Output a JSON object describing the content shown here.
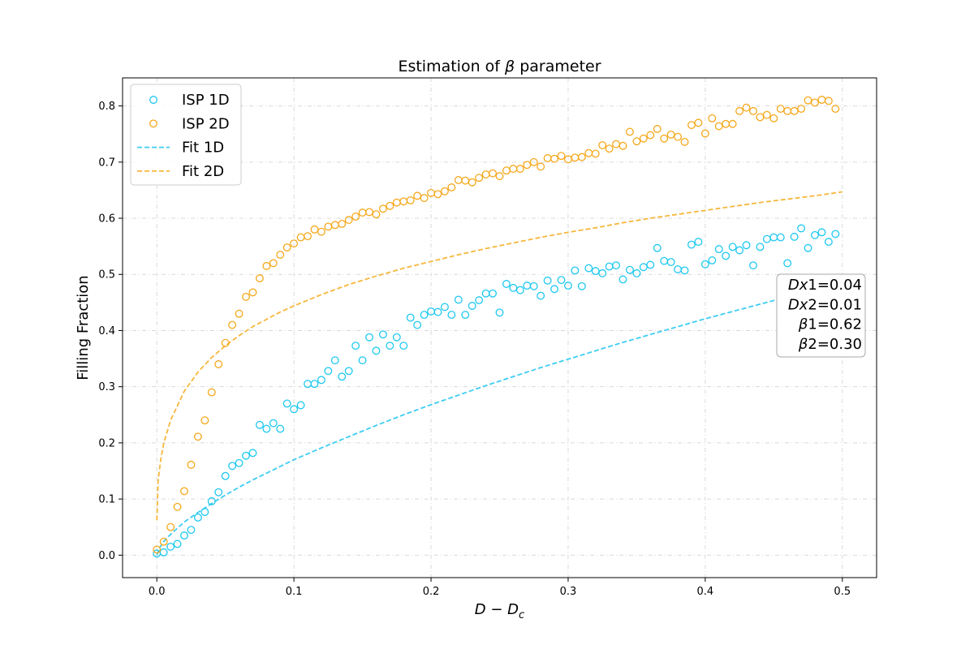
{
  "chart_data": {
    "type": "scatter",
    "title": "Estimation of β parameter",
    "xlabel": "D − D",
    "xlabel_sub": "c",
    "ylabel": "Filling Fraction",
    "xlim": [
      -0.025,
      0.525
    ],
    "ylim": [
      -0.04,
      0.85
    ],
    "xticks": [
      0.0,
      0.1,
      0.2,
      0.3,
      0.4,
      0.5
    ],
    "yticks": [
      0.0,
      0.1,
      0.2,
      0.3,
      0.4,
      0.5,
      0.6,
      0.7,
      0.8
    ],
    "xtick_labels": [
      "0.0",
      "0.1",
      "0.2",
      "0.3",
      "0.4",
      "0.5"
    ],
    "ytick_labels": [
      "0.0",
      "0.1",
      "0.2",
      "0.3",
      "0.4",
      "0.5",
      "0.6",
      "0.7",
      "0.8"
    ],
    "grid": true,
    "legend_position": "top-left",
    "series": [
      {
        "name": "ISP 1D",
        "kind": "scatter",
        "color": "#1ec8f0",
        "points": [
          [
            0.0,
            0.003
          ],
          [
            0.005,
            0.005
          ],
          [
            0.01,
            0.015
          ],
          [
            0.015,
            0.02
          ],
          [
            0.02,
            0.035
          ],
          [
            0.025,
            0.045
          ],
          [
            0.03,
            0.067
          ],
          [
            0.035,
            0.077
          ],
          [
            0.04,
            0.096
          ],
          [
            0.045,
            0.112
          ],
          [
            0.05,
            0.141
          ],
          [
            0.055,
            0.159
          ],
          [
            0.06,
            0.164
          ],
          [
            0.065,
            0.177
          ],
          [
            0.07,
            0.182
          ],
          [
            0.075,
            0.232
          ],
          [
            0.08,
            0.225
          ],
          [
            0.085,
            0.235
          ],
          [
            0.09,
            0.225
          ],
          [
            0.095,
            0.27
          ],
          [
            0.1,
            0.26
          ],
          [
            0.105,
            0.267
          ],
          [
            0.11,
            0.305
          ],
          [
            0.115,
            0.305
          ],
          [
            0.12,
            0.312
          ],
          [
            0.125,
            0.328
          ],
          [
            0.13,
            0.347
          ],
          [
            0.135,
            0.318
          ],
          [
            0.14,
            0.328
          ],
          [
            0.145,
            0.373
          ],
          [
            0.15,
            0.347
          ],
          [
            0.155,
            0.388
          ],
          [
            0.16,
            0.364
          ],
          [
            0.165,
            0.393
          ],
          [
            0.17,
            0.373
          ],
          [
            0.175,
            0.388
          ],
          [
            0.18,
            0.373
          ],
          [
            0.185,
            0.423
          ],
          [
            0.19,
            0.41
          ],
          [
            0.195,
            0.428
          ],
          [
            0.2,
            0.434
          ],
          [
            0.205,
            0.433
          ],
          [
            0.21,
            0.442
          ],
          [
            0.215,
            0.428
          ],
          [
            0.22,
            0.455
          ],
          [
            0.225,
            0.428
          ],
          [
            0.23,
            0.444
          ],
          [
            0.235,
            0.454
          ],
          [
            0.24,
            0.466
          ],
          [
            0.245,
            0.466
          ],
          [
            0.25,
            0.432
          ],
          [
            0.255,
            0.483
          ],
          [
            0.26,
            0.476
          ],
          [
            0.265,
            0.472
          ],
          [
            0.27,
            0.48
          ],
          [
            0.275,
            0.479
          ],
          [
            0.28,
            0.462
          ],
          [
            0.285,
            0.489
          ],
          [
            0.29,
            0.474
          ],
          [
            0.295,
            0.49
          ],
          [
            0.3,
            0.48
          ],
          [
            0.305,
            0.507
          ],
          [
            0.31,
            0.479
          ],
          [
            0.315,
            0.511
          ],
          [
            0.32,
            0.506
          ],
          [
            0.325,
            0.502
          ],
          [
            0.33,
            0.514
          ],
          [
            0.335,
            0.516
          ],
          [
            0.34,
            0.491
          ],
          [
            0.345,
            0.508
          ],
          [
            0.35,
            0.502
          ],
          [
            0.355,
            0.513
          ],
          [
            0.36,
            0.517
          ],
          [
            0.365,
            0.547
          ],
          [
            0.37,
            0.524
          ],
          [
            0.375,
            0.522
          ],
          [
            0.38,
            0.509
          ],
          [
            0.385,
            0.507
          ],
          [
            0.39,
            0.553
          ],
          [
            0.395,
            0.558
          ],
          [
            0.4,
            0.518
          ],
          [
            0.405,
            0.525
          ],
          [
            0.41,
            0.545
          ],
          [
            0.415,
            0.533
          ],
          [
            0.42,
            0.549
          ],
          [
            0.425,
            0.543
          ],
          [
            0.43,
            0.552
          ],
          [
            0.435,
            0.516
          ],
          [
            0.44,
            0.549
          ],
          [
            0.445,
            0.563
          ],
          [
            0.45,
            0.566
          ],
          [
            0.455,
            0.566
          ],
          [
            0.46,
            0.52
          ],
          [
            0.465,
            0.567
          ],
          [
            0.47,
            0.582
          ],
          [
            0.475,
            0.547
          ],
          [
            0.48,
            0.57
          ],
          [
            0.485,
            0.575
          ],
          [
            0.49,
            0.558
          ],
          [
            0.495,
            0.572
          ]
        ]
      },
      {
        "name": "ISP 2D",
        "kind": "scatter",
        "color": "#f5a81c",
        "points": [
          [
            0.0,
            0.01
          ],
          [
            0.005,
            0.024
          ],
          [
            0.01,
            0.05
          ],
          [
            0.015,
            0.086
          ],
          [
            0.02,
            0.114
          ],
          [
            0.025,
            0.161
          ],
          [
            0.03,
            0.211
          ],
          [
            0.035,
            0.24
          ],
          [
            0.04,
            0.29
          ],
          [
            0.045,
            0.34
          ],
          [
            0.05,
            0.378
          ],
          [
            0.055,
            0.41
          ],
          [
            0.06,
            0.43
          ],
          [
            0.065,
            0.46
          ],
          [
            0.07,
            0.468
          ],
          [
            0.075,
            0.493
          ],
          [
            0.08,
            0.515
          ],
          [
            0.085,
            0.52
          ],
          [
            0.09,
            0.535
          ],
          [
            0.095,
            0.548
          ],
          [
            0.1,
            0.555
          ],
          [
            0.105,
            0.566
          ],
          [
            0.11,
            0.568
          ],
          [
            0.115,
            0.58
          ],
          [
            0.12,
            0.576
          ],
          [
            0.125,
            0.585
          ],
          [
            0.13,
            0.588
          ],
          [
            0.135,
            0.59
          ],
          [
            0.14,
            0.597
          ],
          [
            0.145,
            0.603
          ],
          [
            0.15,
            0.61
          ],
          [
            0.155,
            0.611
          ],
          [
            0.16,
            0.607
          ],
          [
            0.165,
            0.617
          ],
          [
            0.17,
            0.622
          ],
          [
            0.175,
            0.628
          ],
          [
            0.18,
            0.63
          ],
          [
            0.185,
            0.632
          ],
          [
            0.19,
            0.64
          ],
          [
            0.195,
            0.636
          ],
          [
            0.2,
            0.645
          ],
          [
            0.205,
            0.643
          ],
          [
            0.21,
            0.648
          ],
          [
            0.215,
            0.655
          ],
          [
            0.22,
            0.668
          ],
          [
            0.225,
            0.667
          ],
          [
            0.23,
            0.664
          ],
          [
            0.235,
            0.672
          ],
          [
            0.24,
            0.678
          ],
          [
            0.245,
            0.68
          ],
          [
            0.25,
            0.675
          ],
          [
            0.255,
            0.685
          ],
          [
            0.26,
            0.688
          ],
          [
            0.265,
            0.688
          ],
          [
            0.27,
            0.695
          ],
          [
            0.275,
            0.7
          ],
          [
            0.28,
            0.692
          ],
          [
            0.285,
            0.707
          ],
          [
            0.29,
            0.706
          ],
          [
            0.295,
            0.711
          ],
          [
            0.3,
            0.705
          ],
          [
            0.305,
            0.708
          ],
          [
            0.31,
            0.709
          ],
          [
            0.315,
            0.716
          ],
          [
            0.32,
            0.715
          ],
          [
            0.325,
            0.73
          ],
          [
            0.33,
            0.724
          ],
          [
            0.335,
            0.732
          ],
          [
            0.34,
            0.729
          ],
          [
            0.345,
            0.754
          ],
          [
            0.35,
            0.737
          ],
          [
            0.355,
            0.742
          ],
          [
            0.36,
            0.748
          ],
          [
            0.365,
            0.759
          ],
          [
            0.37,
            0.742
          ],
          [
            0.375,
            0.749
          ],
          [
            0.38,
            0.745
          ],
          [
            0.385,
            0.736
          ],
          [
            0.39,
            0.766
          ],
          [
            0.395,
            0.77
          ],
          [
            0.4,
            0.751
          ],
          [
            0.405,
            0.778
          ],
          [
            0.41,
            0.764
          ],
          [
            0.415,
            0.768
          ],
          [
            0.42,
            0.768
          ],
          [
            0.425,
            0.791
          ],
          [
            0.43,
            0.797
          ],
          [
            0.435,
            0.791
          ],
          [
            0.44,
            0.78
          ],
          [
            0.445,
            0.784
          ],
          [
            0.45,
            0.778
          ],
          [
            0.455,
            0.795
          ],
          [
            0.46,
            0.791
          ],
          [
            0.465,
            0.791
          ],
          [
            0.47,
            0.795
          ],
          [
            0.475,
            0.81
          ],
          [
            0.48,
            0.806
          ],
          [
            0.485,
            0.811
          ],
          [
            0.49,
            0.809
          ],
          [
            0.495,
            0.795
          ]
        ]
      },
      {
        "name": "Fit 1D",
        "kind": "line",
        "dashed": true,
        "color": "#3ccdf2",
        "points": [
          [
            0.0,
            0.0
          ],
          [
            0.0025,
            0.015
          ],
          [
            0.005,
            0.024
          ],
          [
            0.01,
            0.037
          ],
          [
            0.02,
            0.059
          ],
          [
            0.03,
            0.076
          ],
          [
            0.04,
            0.092
          ],
          [
            0.05,
            0.107
          ],
          [
            0.06,
            0.121
          ],
          [
            0.07,
            0.134
          ],
          [
            0.08,
            0.146
          ],
          [
            0.09,
            0.158
          ],
          [
            0.1,
            0.17
          ],
          [
            0.12,
            0.191
          ],
          [
            0.14,
            0.211
          ],
          [
            0.16,
            0.231
          ],
          [
            0.18,
            0.25
          ],
          [
            0.2,
            0.268
          ],
          [
            0.22,
            0.285
          ],
          [
            0.24,
            0.302
          ],
          [
            0.26,
            0.318
          ],
          [
            0.28,
            0.334
          ],
          [
            0.3,
            0.349
          ],
          [
            0.32,
            0.364
          ],
          [
            0.34,
            0.379
          ],
          [
            0.36,
            0.393
          ],
          [
            0.38,
            0.407
          ],
          [
            0.4,
            0.421
          ],
          [
            0.42,
            0.434
          ],
          [
            0.44,
            0.447
          ],
          [
            0.46,
            0.46
          ],
          [
            0.48,
            0.473
          ],
          [
            0.5,
            0.486
          ]
        ]
      },
      {
        "name": "Fit 2D",
        "kind": "line",
        "dashed": true,
        "color": "#f6b73c",
        "points": [
          [
            0.0,
            0.062
          ],
          [
            0.001,
            0.135
          ],
          [
            0.003,
            0.172
          ],
          [
            0.005,
            0.199
          ],
          [
            0.01,
            0.24
          ],
          [
            0.02,
            0.292
          ],
          [
            0.03,
            0.326
          ],
          [
            0.04,
            0.352
          ],
          [
            0.05,
            0.373
          ],
          [
            0.06,
            0.391
          ],
          [
            0.07,
            0.407
          ],
          [
            0.08,
            0.42
          ],
          [
            0.09,
            0.433
          ],
          [
            0.1,
            0.444
          ],
          [
            0.12,
            0.464
          ],
          [
            0.14,
            0.482
          ],
          [
            0.16,
            0.497
          ],
          [
            0.18,
            0.511
          ],
          [
            0.2,
            0.523
          ],
          [
            0.22,
            0.535
          ],
          [
            0.24,
            0.546
          ],
          [
            0.26,
            0.556
          ],
          [
            0.28,
            0.566
          ],
          [
            0.3,
            0.575
          ],
          [
            0.32,
            0.583
          ],
          [
            0.34,
            0.592
          ],
          [
            0.36,
            0.6
          ],
          [
            0.38,
            0.607
          ],
          [
            0.4,
            0.614
          ],
          [
            0.42,
            0.621
          ],
          [
            0.44,
            0.628
          ],
          [
            0.46,
            0.634
          ],
          [
            0.48,
            0.64
          ],
          [
            0.5,
            0.647
          ]
        ]
      }
    ],
    "annotation": {
      "position": "right-middle",
      "lines": [
        {
          "sym": "Dx",
          "rest": "1=0.04"
        },
        {
          "sym": "Dx",
          "rest": "2=0.01"
        },
        {
          "sym": "β",
          "rest": "1=0.62"
        },
        {
          "sym": "β",
          "rest": "2=0.30"
        }
      ]
    }
  }
}
